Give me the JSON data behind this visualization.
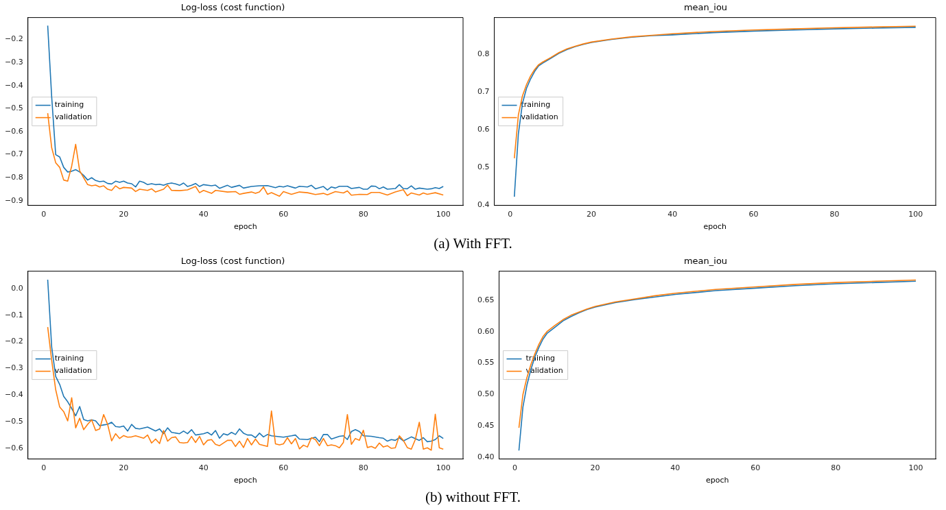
{
  "chart_data": [
    {
      "type": "line",
      "title": "Log-loss (cost function)",
      "xlabel": "epoch",
      "xlim": [
        -3.95,
        104.95
      ],
      "xticks": [
        0,
        20,
        40,
        60,
        80,
        100
      ],
      "ylim": [
        -0.92,
        -0.105
      ],
      "yticks": [
        -0.2,
        -0.3,
        -0.4,
        -0.5,
        -0.6,
        -0.7,
        -0.8,
        -0.9
      ],
      "grid": false,
      "legend": "center left",
      "marker": "none",
      "line_style": "solid",
      "annotations": [
        "(a) With FFT."
      ],
      "series": [
        {
          "name": "training",
          "color": "#1f77b4",
          "x": [
            1,
            2,
            3,
            4,
            5,
            6,
            7,
            8,
            9,
            10,
            11,
            12,
            13,
            14,
            15,
            16,
            17,
            18,
            19,
            20,
            21,
            22,
            23,
            24,
            25,
            26,
            27,
            28,
            29,
            30,
            31,
            32,
            33,
            34,
            35,
            36,
            37,
            38,
            39,
            40,
            42,
            43,
            44,
            46,
            47,
            49,
            50,
            52,
            54,
            56,
            58,
            59,
            60,
            61,
            63,
            64,
            66,
            67,
            68,
            70,
            71,
            72,
            73,
            74,
            76,
            77,
            79,
            80,
            81,
            82,
            83,
            84,
            85,
            86,
            88,
            89,
            90,
            91,
            92,
            93,
            94,
            96,
            97,
            98,
            99,
            100
          ],
          "values": [
            -0.14,
            -0.45,
            -0.7,
            -0.71,
            -0.755,
            -0.775,
            -0.772,
            -0.765,
            -0.775,
            -0.79,
            -0.81,
            -0.8,
            -0.812,
            -0.817,
            -0.815,
            -0.825,
            -0.827,
            -0.815,
            -0.82,
            -0.815,
            -0.823,
            -0.826,
            -0.84,
            -0.815,
            -0.82,
            -0.83,
            -0.826,
            -0.83,
            -0.828,
            -0.833,
            -0.826,
            -0.823,
            -0.827,
            -0.833,
            -0.823,
            -0.838,
            -0.833,
            -0.825,
            -0.838,
            -0.83,
            -0.835,
            -0.832,
            -0.846,
            -0.833,
            -0.842,
            -0.833,
            -0.845,
            -0.838,
            -0.835,
            -0.834,
            -0.843,
            -0.837,
            -0.84,
            -0.835,
            -0.845,
            -0.837,
            -0.84,
            -0.833,
            -0.848,
            -0.838,
            -0.853,
            -0.84,
            -0.845,
            -0.837,
            -0.837,
            -0.847,
            -0.842,
            -0.85,
            -0.85,
            -0.836,
            -0.837,
            -0.848,
            -0.84,
            -0.85,
            -0.847,
            -0.83,
            -0.847,
            -0.848,
            -0.835,
            -0.85,
            -0.845,
            -0.85,
            -0.848,
            -0.843,
            -0.847,
            -0.838
          ]
        },
        {
          "name": "validation",
          "color": "#ff7f0e",
          "x": [
            1,
            2,
            3,
            4,
            5,
            6,
            7,
            8,
            9,
            10,
            11,
            12,
            13,
            14,
            15,
            16,
            17,
            18,
            19,
            20,
            22,
            23,
            24,
            26,
            27,
            28,
            30,
            31,
            32,
            34,
            36,
            38,
            39,
            40,
            42,
            43,
            46,
            48,
            49,
            50,
            52,
            53,
            54,
            55,
            56,
            57,
            59,
            60,
            62,
            64,
            66,
            68,
            70,
            71,
            73,
            75,
            76,
            77,
            79,
            81,
            82,
            84,
            86,
            88,
            90,
            91,
            92,
            94,
            95,
            96,
            98,
            100
          ],
          "values": [
            -0.52,
            -0.67,
            -0.735,
            -0.755,
            -0.81,
            -0.815,
            -0.75,
            -0.655,
            -0.77,
            -0.8,
            -0.83,
            -0.835,
            -0.832,
            -0.84,
            -0.835,
            -0.85,
            -0.855,
            -0.835,
            -0.848,
            -0.842,
            -0.845,
            -0.86,
            -0.85,
            -0.855,
            -0.848,
            -0.862,
            -0.85,
            -0.832,
            -0.855,
            -0.856,
            -0.853,
            -0.838,
            -0.865,
            -0.855,
            -0.868,
            -0.855,
            -0.862,
            -0.86,
            -0.872,
            -0.868,
            -0.862,
            -0.868,
            -0.862,
            -0.84,
            -0.872,
            -0.865,
            -0.88,
            -0.86,
            -0.872,
            -0.862,
            -0.865,
            -0.873,
            -0.868,
            -0.874,
            -0.86,
            -0.866,
            -0.857,
            -0.876,
            -0.872,
            -0.873,
            -0.864,
            -0.864,
            -0.875,
            -0.862,
            -0.852,
            -0.878,
            -0.866,
            -0.875,
            -0.866,
            -0.872,
            -0.865,
            -0.875
          ]
        }
      ]
    },
    {
      "type": "line",
      "title": "mean_iou",
      "xlabel": "epoch",
      "xlim": [
        -3.95,
        104.95
      ],
      "xticks": [
        0,
        20,
        40,
        60,
        80,
        100
      ],
      "ylim": [
        0.4,
        0.898
      ],
      "yticks": [
        0.4,
        0.5,
        0.6,
        0.7,
        0.8
      ],
      "grid": false,
      "legend": "center left",
      "marker": "none",
      "line_style": "solid",
      "series": [
        {
          "name": "training",
          "color": "#1f77b4",
          "x": [
            1,
            2,
            3,
            4,
            5,
            6,
            7,
            8,
            10,
            12,
            14,
            16,
            18,
            20,
            25,
            30,
            35,
            40,
            50,
            60,
            70,
            80,
            90,
            100
          ],
          "values": [
            0.423,
            0.59,
            0.67,
            0.71,
            0.735,
            0.755,
            0.77,
            0.777,
            0.79,
            0.803,
            0.813,
            0.821,
            0.827,
            0.832,
            0.84,
            0.846,
            0.85,
            0.852,
            0.858,
            0.862,
            0.865,
            0.868,
            0.87,
            0.872
          ]
        },
        {
          "name": "validation",
          "color": "#ff7f0e",
          "x": [
            1,
            2,
            3,
            4,
            5,
            6,
            7,
            8,
            10,
            12,
            14,
            16,
            18,
            20,
            25,
            30,
            35,
            40,
            50,
            60,
            70,
            80,
            90,
            100
          ],
          "values": [
            0.525,
            0.64,
            0.69,
            0.72,
            0.743,
            0.76,
            0.773,
            0.78,
            0.792,
            0.805,
            0.815,
            0.822,
            0.828,
            0.833,
            0.841,
            0.847,
            0.851,
            0.855,
            0.861,
            0.865,
            0.868,
            0.871,
            0.873,
            0.875
          ]
        }
      ]
    },
    {
      "type": "line",
      "title": "Log-loss (cost function)",
      "xlabel": "epoch",
      "xlim": [
        -3.95,
        104.95
      ],
      "xticks": [
        0,
        20,
        40,
        60,
        80,
        100
      ],
      "ylim": [
        -0.64,
        0.065
      ],
      "yticks": [
        {
          "value": 0,
          "label": "0.0"
        },
        -0.1,
        -0.2,
        -0.3,
        -0.4,
        -0.5,
        -0.6
      ],
      "grid": false,
      "legend": "center left",
      "marker": "none",
      "line_style": "solid",
      "annotations": [
        "(b) without FFT."
      ],
      "series": [
        {
          "name": "training",
          "color": "#1f77b4",
          "x": [
            1,
            2,
            3,
            4,
            5,
            6,
            7,
            8,
            9,
            10,
            11,
            12,
            13,
            14,
            15,
            16,
            17,
            18,
            19,
            20,
            21,
            22,
            23,
            24,
            26,
            28,
            29,
            30,
            31,
            32,
            34,
            35,
            36,
            37,
            38,
            40,
            41,
            42,
            43,
            44,
            45,
            46,
            47,
            48,
            49,
            50,
            51,
            52,
            53,
            54,
            55,
            56,
            57,
            60,
            62,
            63,
            64,
            66,
            68,
            69,
            70,
            71,
            72,
            74,
            75,
            76,
            77,
            78,
            79,
            80,
            82,
            84,
            85,
            86,
            87,
            88,
            89,
            90,
            92,
            94,
            95,
            96,
            97,
            98,
            99,
            100
          ],
          "values": [
            0.033,
            -0.22,
            -0.33,
            -0.36,
            -0.405,
            -0.425,
            -0.45,
            -0.478,
            -0.443,
            -0.492,
            -0.497,
            -0.493,
            -0.497,
            -0.515,
            -0.512,
            -0.51,
            -0.502,
            -0.518,
            -0.52,
            -0.516,
            -0.535,
            -0.51,
            -0.525,
            -0.527,
            -0.52,
            -0.535,
            -0.527,
            -0.545,
            -0.523,
            -0.54,
            -0.545,
            -0.535,
            -0.545,
            -0.53,
            -0.55,
            -0.545,
            -0.54,
            -0.55,
            -0.533,
            -0.562,
            -0.545,
            -0.55,
            -0.54,
            -0.548,
            -0.527,
            -0.543,
            -0.55,
            -0.55,
            -0.56,
            -0.543,
            -0.557,
            -0.548,
            -0.553,
            -0.558,
            -0.553,
            -0.55,
            -0.565,
            -0.567,
            -0.558,
            -0.575,
            -0.548,
            -0.548,
            -0.565,
            -0.555,
            -0.553,
            -0.567,
            -0.537,
            -0.53,
            -0.537,
            -0.553,
            -0.555,
            -0.56,
            -0.562,
            -0.573,
            -0.567,
            -0.57,
            -0.56,
            -0.572,
            -0.557,
            -0.57,
            -0.56,
            -0.575,
            -0.573,
            -0.567,
            -0.553,
            -0.563
          ]
        },
        {
          "name": "validation",
          "color": "#ff7f0e",
          "x": [
            1,
            2,
            3,
            4,
            5,
            6,
            7,
            8,
            9,
            10,
            11,
            12,
            13,
            14,
            15,
            16,
            17,
            18,
            19,
            20,
            21,
            22,
            23,
            25,
            26,
            27,
            28,
            29,
            30,
            31,
            32,
            33,
            34,
            35,
            36,
            37,
            38,
            39,
            40,
            41,
            42,
            43,
            44,
            46,
            47,
            48,
            49,
            50,
            51,
            52,
            53,
            54,
            56,
            57,
            58,
            59,
            60,
            61,
            62,
            63,
            64,
            65,
            66,
            67,
            68,
            69,
            70,
            71,
            72,
            73,
            74,
            75,
            76,
            77,
            78,
            79,
            80,
            81,
            82,
            83,
            84,
            85,
            86,
            87,
            88,
            89,
            90,
            91,
            92,
            93,
            94,
            95,
            96,
            97,
            98,
            99,
            100
          ],
          "values": [
            -0.145,
            -0.27,
            -0.38,
            -0.445,
            -0.462,
            -0.497,
            -0.41,
            -0.523,
            -0.487,
            -0.53,
            -0.51,
            -0.493,
            -0.533,
            -0.527,
            -0.473,
            -0.51,
            -0.572,
            -0.545,
            -0.563,
            -0.552,
            -0.558,
            -0.557,
            -0.553,
            -0.562,
            -0.55,
            -0.58,
            -0.565,
            -0.582,
            -0.533,
            -0.573,
            -0.56,
            -0.557,
            -0.578,
            -0.58,
            -0.578,
            -0.555,
            -0.578,
            -0.555,
            -0.587,
            -0.57,
            -0.567,
            -0.585,
            -0.59,
            -0.57,
            -0.57,
            -0.593,
            -0.573,
            -0.597,
            -0.563,
            -0.587,
            -0.565,
            -0.585,
            -0.593,
            -0.46,
            -0.583,
            -0.587,
            -0.583,
            -0.56,
            -0.583,
            -0.563,
            -0.602,
            -0.588,
            -0.595,
            -0.56,
            -0.567,
            -0.59,
            -0.563,
            -0.59,
            -0.587,
            -0.59,
            -0.598,
            -0.578,
            -0.473,
            -0.585,
            -0.563,
            -0.57,
            -0.532,
            -0.597,
            -0.593,
            -0.6,
            -0.58,
            -0.595,
            -0.59,
            -0.6,
            -0.598,
            -0.553,
            -0.57,
            -0.597,
            -0.603,
            -0.567,
            -0.502,
            -0.603,
            -0.598,
            -0.607,
            -0.472,
            -0.598,
            -0.603
          ]
        }
      ]
    },
    {
      "type": "line",
      "title": "mean_iou",
      "xlabel": "epoch",
      "xlim": [
        -3.95,
        104.95
      ],
      "xticks": [
        0,
        20,
        40,
        60,
        80,
        100
      ],
      "ylim": [
        0.3975,
        0.696
      ],
      "yticks": [
        {
          "value": 0.4,
          "label": "0.40"
        },
        0.45,
        {
          "value": 0.5,
          "label": "0.50"
        },
        0.55,
        {
          "value": 0.6,
          "label": "0.60"
        },
        0.65
      ],
      "grid": false,
      "legend": "center left",
      "marker": "none",
      "line_style": "solid",
      "series": [
        {
          "name": "training",
          "color": "#1f77b4",
          "x": [
            1,
            2,
            3,
            4,
            5,
            6,
            7,
            8,
            10,
            12,
            14,
            16,
            18,
            20,
            25,
            30,
            35,
            40,
            50,
            60,
            70,
            80,
            90,
            100
          ],
          "values": [
            0.411,
            0.48,
            0.515,
            0.54,
            0.56,
            0.575,
            0.588,
            0.597,
            0.607,
            0.617,
            0.624,
            0.63,
            0.635,
            0.639,
            0.646,
            0.651,
            0.655,
            0.659,
            0.665,
            0.669,
            0.673,
            0.676,
            0.678,
            0.68
          ]
        },
        {
          "name": "validation",
          "color": "#ff7f0e",
          "x": [
            1,
            2,
            3,
            4,
            5,
            6,
            7,
            8,
            10,
            12,
            14,
            16,
            18,
            20,
            25,
            30,
            35,
            40,
            50,
            60,
            70,
            80,
            90,
            100
          ],
          "values": [
            0.447,
            0.5,
            0.527,
            0.548,
            0.565,
            0.58,
            0.592,
            0.6,
            0.61,
            0.619,
            0.626,
            0.631,
            0.636,
            0.64,
            0.647,
            0.652,
            0.657,
            0.661,
            0.667,
            0.671,
            0.675,
            0.678,
            0.68,
            0.682
          ]
        }
      ]
    }
  ]
}
